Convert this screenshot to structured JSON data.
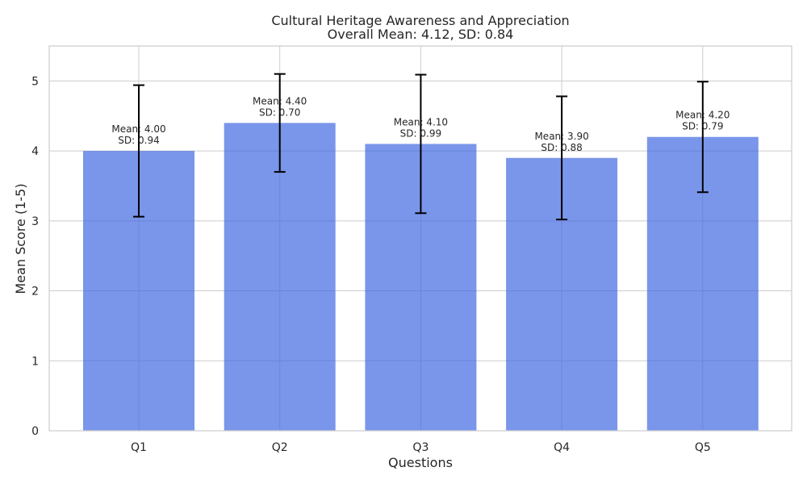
{
  "chart_data": {
    "type": "bar",
    "title": "Cultural Heritage Awareness and Appreciation",
    "subtitle": "Overall Mean: 4.12, SD: 0.84",
    "xlabel": "Questions",
    "ylabel": "Mean Score (1-5)",
    "categories": [
      "Q1",
      "Q2",
      "Q3",
      "Q4",
      "Q5"
    ],
    "values": [
      4.0,
      4.4,
      4.1,
      3.9,
      4.2
    ],
    "errors": [
      0.94,
      0.7,
      0.99,
      0.88,
      0.79
    ],
    "bar_labels": [
      [
        "Mean: 4.00",
        "SD: 0.94"
      ],
      [
        "Mean: 4.40",
        "SD: 0.70"
      ],
      [
        "Mean: 4.10",
        "SD: 0.99"
      ],
      [
        "Mean: 3.90",
        "SD: 0.88"
      ],
      [
        "Mean: 4.20",
        "SD: 0.79"
      ]
    ],
    "yticks": [
      0,
      1,
      2,
      3,
      4,
      5
    ],
    "ylim": [
      0,
      5.5
    ],
    "grid": true,
    "bar_color": "#4169e1",
    "error_color": "#000000"
  }
}
